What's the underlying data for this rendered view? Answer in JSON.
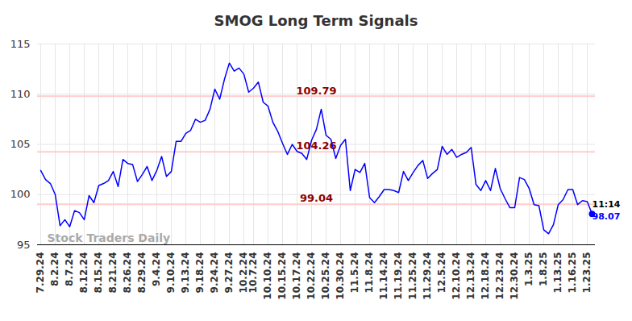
{
  "chart_data": {
    "type": "line",
    "title": "SMOG Long Term Signals",
    "watermark": "Stock Traders Daily",
    "end_label": "11:14",
    "color": "#0000ff",
    "grid": true,
    "ylim": [
      95,
      115
    ],
    "yticks": [
      95,
      100,
      105,
      110,
      115
    ],
    "annotations": [
      {
        "value": 109.79,
        "label": "109.79"
      },
      {
        "value": 104.26,
        "label": "104.26"
      },
      {
        "value": 99.04,
        "label": "99.04"
      }
    ],
    "categories": [
      "7.29.24",
      null,
      null,
      "8.2.24",
      null,
      null,
      "8.7.24",
      null,
      null,
      "8.12.24",
      null,
      null,
      "8.15.24",
      null,
      null,
      "8.21.24",
      null,
      null,
      "8.26.24",
      null,
      null,
      "8.29.24",
      null,
      null,
      "9.4.24",
      null,
      null,
      "9.10.24",
      null,
      null,
      "9.13.24",
      null,
      null,
      "9.18.24",
      null,
      null,
      "9.24.24",
      null,
      null,
      "9.27.24",
      null,
      null,
      "10.2.24",
      null,
      "10.7.24",
      null,
      null,
      "10.10.24",
      null,
      null,
      "10.15.24",
      null,
      null,
      "10.17.24",
      null,
      null,
      "10.22.24",
      null,
      null,
      "10.25.24",
      null,
      null,
      "10.30.24",
      null,
      null,
      "11.5.24",
      null,
      null,
      "11.8.24",
      null,
      null,
      "11.14.24",
      null,
      null,
      "11.19.24",
      null,
      null,
      "11.25.24",
      null,
      null,
      "11.29.24",
      null,
      null,
      "12.5.24",
      null,
      null,
      "12.10.24",
      null,
      null,
      "12.13.24",
      null,
      null,
      "12.18.24",
      null,
      null,
      "12.23.24",
      null,
      null,
      "12.30.24",
      null,
      null,
      "1.3.25",
      null,
      null,
      "1.8.25",
      null,
      null,
      "1.13.25",
      null,
      null,
      "1.16.25",
      null,
      null,
      "1.23.25",
      null
    ],
    "values": [
      102.4,
      101.5,
      101.1,
      100.0,
      96.9,
      97.5,
      96.8,
      98.4,
      98.2,
      97.5,
      99.9,
      99.2,
      100.9,
      101.1,
      101.4,
      102.3,
      100.8,
      103.5,
      103.1,
      103.0,
      101.3,
      102.0,
      102.8,
      101.4,
      102.4,
      103.8,
      101.8,
      102.3,
      105.3,
      105.3,
      106.1,
      106.4,
      107.5,
      107.2,
      107.4,
      108.5,
      110.5,
      109.5,
      111.5,
      113.1,
      112.3,
      112.6,
      112.0,
      110.2,
      110.6,
      111.2,
      109.2,
      108.8,
      107.2,
      106.3,
      105.1,
      104.0,
      105.0,
      104.3,
      104.1,
      103.5,
      105.4,
      106.5,
      108.5,
      105.9,
      105.5,
      103.6,
      104.9,
      105.5,
      100.4,
      102.5,
      102.2,
      103.1,
      99.7,
      99.2,
      99.8,
      100.5,
      100.5,
      100.4,
      100.2,
      102.3,
      101.4,
      102.2,
      102.9,
      103.4,
      101.6,
      102.1,
      102.5,
      104.8,
      104.0,
      104.5,
      103.7,
      104.0,
      104.2,
      104.7,
      101.0,
      100.4,
      101.4,
      100.4,
      102.6,
      100.6,
      99.6,
      98.7,
      98.7,
      101.7,
      101.5,
      100.6,
      99.0,
      98.9,
      96.5,
      96.1,
      97.0,
      99.0,
      99.5,
      100.5,
      100.5,
      99.0,
      99.4,
      99.3,
      98.07
    ]
  }
}
